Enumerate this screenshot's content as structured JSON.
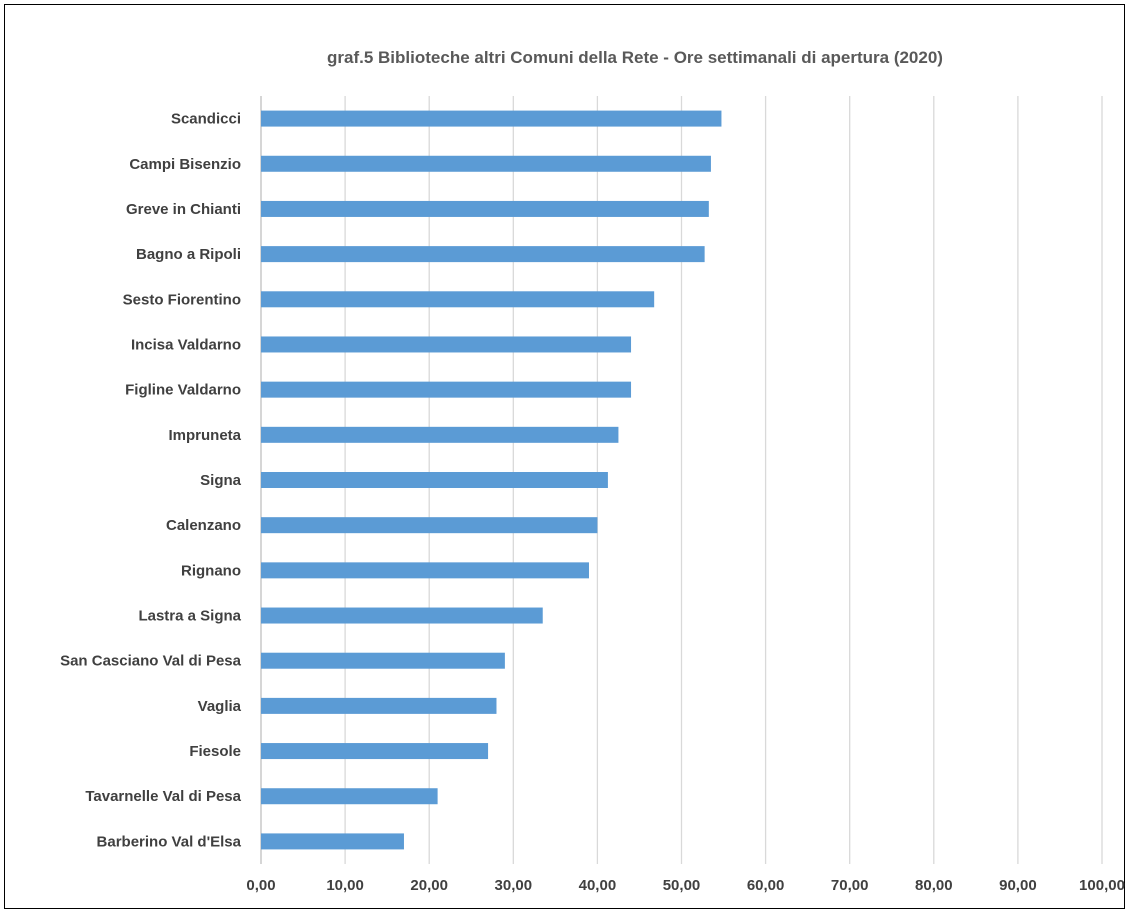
{
  "chart_data": {
    "type": "bar",
    "orientation": "horizontal",
    "title": "graf.5  Biblioteche altri Comuni della Rete - Ore settimanali di apertura (2020)",
    "categories": [
      "Scandicci",
      "Campi Bisenzio",
      "Greve in Chianti",
      "Bagno a Ripoli",
      "Sesto Fiorentino",
      "Incisa Valdarno",
      "Figline Valdarno",
      "Impruneta",
      "Signa",
      "Calenzano",
      "Rignano",
      "Lastra a Signa",
      "San Casciano Val di Pesa",
      "Vaglia",
      "Fiesole",
      "Tavarnelle Val di Pesa",
      "Barberino Val d'Elsa"
    ],
    "values": [
      54.75,
      53.5,
      53.25,
      52.75,
      46.75,
      44.0,
      44.0,
      42.5,
      41.25,
      40.0,
      39.0,
      33.5,
      29.0,
      28.0,
      27.0,
      21.0,
      17.0
    ],
    "xlim": [
      0,
      100
    ],
    "xticks": [
      "0,00",
      "10,00",
      "20,00",
      "30,00",
      "40,00",
      "50,00",
      "60,00",
      "70,00",
      "80,00",
      "90,00",
      "100,00"
    ],
    "tick_values": [
      0,
      10,
      20,
      30,
      40,
      50,
      60,
      70,
      80,
      90,
      100
    ],
    "grid": true,
    "bar_color": "#5b9bd5",
    "grid_color": "#d9d9d9"
  }
}
